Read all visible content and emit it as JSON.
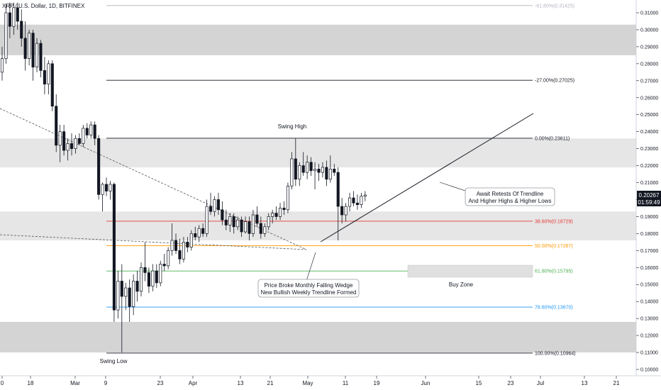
{
  "chart_data": {
    "type": "candlestick",
    "title": "XRP / U.S. Dollar, 1D, BITFINEX",
    "ylim": [
      0.095,
      0.317
    ],
    "y_ticks": [
      "0.31000",
      "0.30000",
      "0.29000",
      "0.28000",
      "0.27000",
      "0.26000",
      "0.25000",
      "0.24000",
      "0.23000",
      "0.22000",
      "0.21000",
      "0.20000",
      "0.19000",
      "0.18000",
      "0.17000",
      "0.16000",
      "0.15000",
      "0.14000",
      "0.13000",
      "0.12000",
      "0.11000",
      "0.10000"
    ],
    "x_ticks": [
      "0",
      "18",
      "Mar",
      "9",
      "23",
      "Apr",
      "13",
      "21",
      "May",
      "11",
      "19",
      "Jun",
      "15",
      "23",
      "Jul",
      "13",
      "21"
    ],
    "last_price": "0.20267",
    "countdown": "01:59:49",
    "last_price_color": "#131722",
    "fib_levels": [
      {
        "label": "-61.80%(0.31425)",
        "value": 0.31425,
        "color": "#b2b5be"
      },
      {
        "label": "-27.00%(0.27025)",
        "value": 0.27025,
        "color": "#131722"
      },
      {
        "label": "0.00%(0.23611)",
        "value": 0.23611,
        "color": "#131722"
      },
      {
        "label": "38.60%(0.18729)",
        "value": 0.18729,
        "color": "#e53935"
      },
      {
        "label": "50.00%(0.17287)",
        "value": 0.17287,
        "color": "#ff9800"
      },
      {
        "label": "61.80%(0.15795)",
        "value": 0.15795,
        "color": "#4caf50"
      },
      {
        "label": "78.60%(0.13670)",
        "value": 0.1367,
        "color": "#2196f3"
      },
      {
        "label": "100.00%(0.10964)",
        "value": 0.10964,
        "color": "#131722"
      }
    ],
    "zones": [
      {
        "from": 0.285,
        "to": 0.303,
        "color": "#d4d4d4"
      },
      {
        "from": 0.219,
        "to": 0.236,
        "color": "#e6e6e6"
      },
      {
        "from": 0.176,
        "to": 0.193,
        "color": "#e6e6e6"
      },
      {
        "from": 0.11,
        "to": 0.128,
        "color": "#d4d4d4"
      }
    ],
    "candles": [
      {
        "o": 0.275,
        "h": 0.29,
        "l": 0.27,
        "c": 0.283
      },
      {
        "o": 0.283,
        "h": 0.315,
        "l": 0.28,
        "c": 0.31
      },
      {
        "o": 0.31,
        "h": 0.316,
        "l": 0.295,
        "c": 0.302
      },
      {
        "o": 0.302,
        "h": 0.316,
        "l": 0.297,
        "c": 0.313
      },
      {
        "o": 0.313,
        "h": 0.316,
        "l": 0.3,
        "c": 0.305
      },
      {
        "o": 0.305,
        "h": 0.312,
        "l": 0.29,
        "c": 0.295
      },
      {
        "o": 0.295,
        "h": 0.305,
        "l": 0.276,
        "c": 0.283
      },
      {
        "o": 0.283,
        "h": 0.3,
        "l": 0.279,
        "c": 0.298
      },
      {
        "o": 0.298,
        "h": 0.3,
        "l": 0.27,
        "c": 0.278
      },
      {
        "o": 0.278,
        "h": 0.295,
        "l": 0.275,
        "c": 0.292
      },
      {
        "o": 0.292,
        "h": 0.294,
        "l": 0.272,
        "c": 0.276
      },
      {
        "o": 0.276,
        "h": 0.284,
        "l": 0.262,
        "c": 0.268
      },
      {
        "o": 0.268,
        "h": 0.282,
        "l": 0.262,
        "c": 0.28
      },
      {
        "o": 0.28,
        "h": 0.282,
        "l": 0.252,
        "c": 0.255
      },
      {
        "o": 0.255,
        "h": 0.262,
        "l": 0.228,
        "c": 0.232
      },
      {
        "o": 0.232,
        "h": 0.244,
        "l": 0.222,
        "c": 0.24
      },
      {
        "o": 0.24,
        "h": 0.244,
        "l": 0.226,
        "c": 0.229
      },
      {
        "o": 0.229,
        "h": 0.236,
        "l": 0.223,
        "c": 0.233
      },
      {
        "o": 0.233,
        "h": 0.239,
        "l": 0.226,
        "c": 0.23
      },
      {
        "o": 0.23,
        "h": 0.238,
        "l": 0.227,
        "c": 0.236
      },
      {
        "o": 0.236,
        "h": 0.239,
        "l": 0.232,
        "c": 0.233
      },
      {
        "o": 0.233,
        "h": 0.244,
        "l": 0.231,
        "c": 0.242
      },
      {
        "o": 0.242,
        "h": 0.245,
        "l": 0.236,
        "c": 0.238
      },
      {
        "o": 0.238,
        "h": 0.246,
        "l": 0.236,
        "c": 0.244
      },
      {
        "o": 0.244,
        "h": 0.246,
        "l": 0.232,
        "c": 0.236
      },
      {
        "o": 0.236,
        "h": 0.238,
        "l": 0.2,
        "c": 0.203
      },
      {
        "o": 0.203,
        "h": 0.21,
        "l": 0.193,
        "c": 0.209
      },
      {
        "o": 0.209,
        "h": 0.213,
        "l": 0.202,
        "c": 0.205
      },
      {
        "o": 0.205,
        "h": 0.211,
        "l": 0.2,
        "c": 0.209
      },
      {
        "o": 0.209,
        "h": 0.21,
        "l": 0.128,
        "c": 0.135
      },
      {
        "o": 0.135,
        "h": 0.158,
        "l": 0.13,
        "c": 0.152
      },
      {
        "o": 0.152,
        "h": 0.162,
        "l": 0.11,
        "c": 0.143
      },
      {
        "o": 0.143,
        "h": 0.151,
        "l": 0.135,
        "c": 0.148
      },
      {
        "o": 0.148,
        "h": 0.153,
        "l": 0.128,
        "c": 0.137
      },
      {
        "o": 0.137,
        "h": 0.156,
        "l": 0.132,
        "c": 0.152
      },
      {
        "o": 0.152,
        "h": 0.158,
        "l": 0.14,
        "c": 0.146
      },
      {
        "o": 0.146,
        "h": 0.163,
        "l": 0.143,
        "c": 0.16
      },
      {
        "o": 0.16,
        "h": 0.175,
        "l": 0.152,
        "c": 0.157
      },
      {
        "o": 0.157,
        "h": 0.16,
        "l": 0.145,
        "c": 0.149
      },
      {
        "o": 0.149,
        "h": 0.162,
        "l": 0.146,
        "c": 0.158
      },
      {
        "o": 0.158,
        "h": 0.162,
        "l": 0.148,
        "c": 0.151
      },
      {
        "o": 0.151,
        "h": 0.164,
        "l": 0.149,
        "c": 0.162
      },
      {
        "o": 0.162,
        "h": 0.168,
        "l": 0.158,
        "c": 0.161
      },
      {
        "o": 0.161,
        "h": 0.172,
        "l": 0.159,
        "c": 0.17
      },
      {
        "o": 0.17,
        "h": 0.186,
        "l": 0.167,
        "c": 0.176
      },
      {
        "o": 0.176,
        "h": 0.18,
        "l": 0.168,
        "c": 0.17
      },
      {
        "o": 0.17,
        "h": 0.177,
        "l": 0.162,
        "c": 0.165
      },
      {
        "o": 0.165,
        "h": 0.178,
        "l": 0.163,
        "c": 0.175
      },
      {
        "o": 0.175,
        "h": 0.178,
        "l": 0.169,
        "c": 0.172
      },
      {
        "o": 0.172,
        "h": 0.182,
        "l": 0.17,
        "c": 0.18
      },
      {
        "o": 0.18,
        "h": 0.184,
        "l": 0.176,
        "c": 0.178
      },
      {
        "o": 0.178,
        "h": 0.185,
        "l": 0.175,
        "c": 0.183
      },
      {
        "o": 0.183,
        "h": 0.186,
        "l": 0.178,
        "c": 0.18
      },
      {
        "o": 0.18,
        "h": 0.2,
        "l": 0.178,
        "c": 0.196
      },
      {
        "o": 0.196,
        "h": 0.204,
        "l": 0.191,
        "c": 0.193
      },
      {
        "o": 0.193,
        "h": 0.202,
        "l": 0.19,
        "c": 0.2
      },
      {
        "o": 0.2,
        "h": 0.204,
        "l": 0.191,
        "c": 0.194
      },
      {
        "o": 0.194,
        "h": 0.199,
        "l": 0.185,
        "c": 0.188
      },
      {
        "o": 0.188,
        "h": 0.194,
        "l": 0.182,
        "c": 0.185
      },
      {
        "o": 0.185,
        "h": 0.192,
        "l": 0.181,
        "c": 0.19
      },
      {
        "o": 0.19,
        "h": 0.192,
        "l": 0.18,
        "c": 0.184
      },
      {
        "o": 0.184,
        "h": 0.19,
        "l": 0.182,
        "c": 0.188
      },
      {
        "o": 0.188,
        "h": 0.19,
        "l": 0.178,
        "c": 0.181
      },
      {
        "o": 0.181,
        "h": 0.19,
        "l": 0.18,
        "c": 0.187
      },
      {
        "o": 0.187,
        "h": 0.19,
        "l": 0.176,
        "c": 0.18
      },
      {
        "o": 0.18,
        "h": 0.194,
        "l": 0.178,
        "c": 0.191
      },
      {
        "o": 0.191,
        "h": 0.196,
        "l": 0.184,
        "c": 0.186
      },
      {
        "o": 0.186,
        "h": 0.19,
        "l": 0.177,
        "c": 0.18
      },
      {
        "o": 0.18,
        "h": 0.186,
        "l": 0.178,
        "c": 0.184
      },
      {
        "o": 0.184,
        "h": 0.192,
        "l": 0.182,
        "c": 0.19
      },
      {
        "o": 0.19,
        "h": 0.194,
        "l": 0.186,
        "c": 0.192
      },
      {
        "o": 0.192,
        "h": 0.196,
        "l": 0.188,
        "c": 0.19
      },
      {
        "o": 0.19,
        "h": 0.198,
        "l": 0.188,
        "c": 0.195
      },
      {
        "o": 0.195,
        "h": 0.199,
        "l": 0.191,
        "c": 0.194
      },
      {
        "o": 0.194,
        "h": 0.21,
        "l": 0.192,
        "c": 0.208
      },
      {
        "o": 0.208,
        "h": 0.228,
        "l": 0.206,
        "c": 0.224
      },
      {
        "o": 0.224,
        "h": 0.236,
        "l": 0.208,
        "c": 0.212
      },
      {
        "o": 0.212,
        "h": 0.222,
        "l": 0.208,
        "c": 0.22
      },
      {
        "o": 0.22,
        "h": 0.228,
        "l": 0.214,
        "c": 0.216
      },
      {
        "o": 0.216,
        "h": 0.226,
        "l": 0.212,
        "c": 0.222
      },
      {
        "o": 0.222,
        "h": 0.225,
        "l": 0.214,
        "c": 0.217
      },
      {
        "o": 0.217,
        "h": 0.222,
        "l": 0.206,
        "c": 0.218
      },
      {
        "o": 0.218,
        "h": 0.221,
        "l": 0.211,
        "c": 0.216
      },
      {
        "o": 0.216,
        "h": 0.222,
        "l": 0.213,
        "c": 0.219
      },
      {
        "o": 0.219,
        "h": 0.223,
        "l": 0.208,
        "c": 0.212
      },
      {
        "o": 0.212,
        "h": 0.226,
        "l": 0.21,
        "c": 0.218
      },
      {
        "o": 0.218,
        "h": 0.221,
        "l": 0.214,
        "c": 0.216
      },
      {
        "o": 0.216,
        "h": 0.219,
        "l": 0.176,
        "c": 0.196
      },
      {
        "o": 0.196,
        "h": 0.201,
        "l": 0.186,
        "c": 0.191
      },
      {
        "o": 0.191,
        "h": 0.198,
        "l": 0.187,
        "c": 0.196
      },
      {
        "o": 0.196,
        "h": 0.204,
        "l": 0.193,
        "c": 0.201
      },
      {
        "o": 0.201,
        "h": 0.205,
        "l": 0.196,
        "c": 0.198
      },
      {
        "o": 0.198,
        "h": 0.203,
        "l": 0.194,
        "c": 0.197
      },
      {
        "o": 0.197,
        "h": 0.204,
        "l": 0.195,
        "c": 0.202
      },
      {
        "o": 0.202,
        "h": 0.205,
        "l": 0.199,
        "c": 0.2027
      }
    ],
    "annotations": {
      "swing_high": "Swing High",
      "swing_low": "Swing Low",
      "await_line1": "Await Retests Of Trendline",
      "await_line2": "And Higher Highs & Higher Lows",
      "broke_line1": "Price Broke Monthly Falling Wedge",
      "broke_line2": "New Bullish Weekly Trendline Formed",
      "buy_zone": "Buy Zone"
    },
    "colors": {
      "up": "#131722",
      "down": "#131722",
      "up_fill": "#ffffff",
      "down_fill": "#131722",
      "grid": "#ffffff"
    }
  }
}
